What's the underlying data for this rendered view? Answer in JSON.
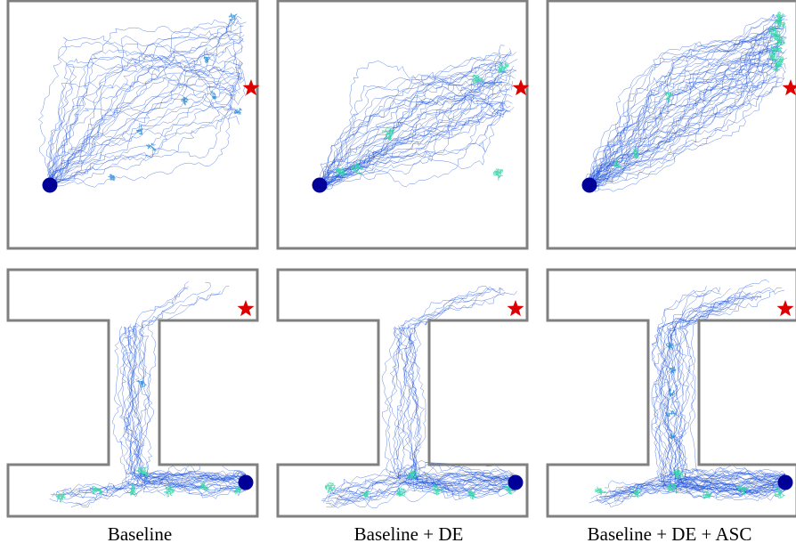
{
  "captions": [
    "Baseline",
    "Baseline + DE",
    "Baseline + DE + ASC"
  ],
  "colors": {
    "wall": "#808080",
    "trajectory": "#1a4fd8",
    "trajectory_dense": "#2fd6a6",
    "start_marker": "#000099",
    "goal_marker": "#dd0000"
  },
  "icons": {
    "start": "start-circle-icon",
    "goal": "goal-star-icon"
  },
  "panels": [
    {
      "row": "open-room",
      "method": "Baseline"
    },
    {
      "row": "open-room",
      "method": "Baseline + DE"
    },
    {
      "row": "open-room",
      "method": "Baseline + DE + ASC"
    },
    {
      "row": "h-maze",
      "method": "Baseline"
    },
    {
      "row": "h-maze",
      "method": "Baseline + DE"
    },
    {
      "row": "h-maze",
      "method": "Baseline + DE + ASC"
    }
  ]
}
